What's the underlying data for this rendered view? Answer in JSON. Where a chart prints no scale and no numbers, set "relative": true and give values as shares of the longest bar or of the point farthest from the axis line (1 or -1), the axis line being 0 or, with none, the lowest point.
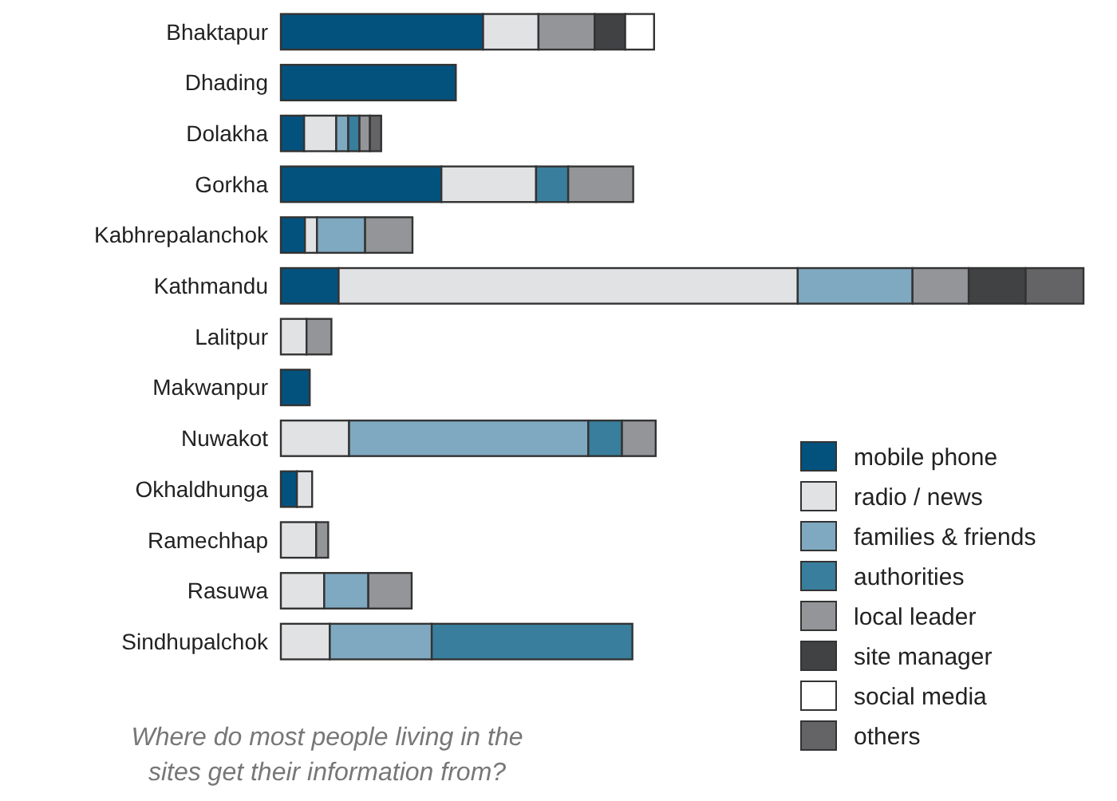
{
  "chart_data": {
    "type": "bar",
    "orientation": "horizontal",
    "stacked": true,
    "relative": true,
    "title": "Where do most people living in the sites get their information from?",
    "categories": [
      "Bhaktapur",
      "Dhading",
      "Dolakha",
      "Gorkha",
      "Kabhrepalanchok",
      "Kathmandu",
      "Lalitpur",
      "Makwanpur",
      "Nuwakot",
      "Okhaldhunga",
      "Ramechhap",
      "Rasuwa",
      "Sindhupalchok"
    ],
    "series": [
      {
        "name": "mobile phone",
        "color": "#03527e",
        "values": [
          0.252,
          0.218,
          0.029,
          0.2,
          0.03,
          0.072,
          null,
          0.036,
          null,
          0.02,
          null,
          null,
          null
        ]
      },
      {
        "name": "radio / news",
        "color": "#e1e2e4",
        "values": [
          0.069,
          null,
          0.04,
          0.118,
          0.015,
          0.572,
          0.032,
          null,
          0.085,
          0.019,
          0.044,
          0.054,
          0.061
        ]
      },
      {
        "name": "families & friends",
        "color": "#7fa9c0",
        "values": [
          null,
          null,
          0.015,
          null,
          0.06,
          0.143,
          null,
          null,
          0.298,
          null,
          null,
          0.055,
          0.127
        ]
      },
      {
        "name": "authorities",
        "color": "#397e9c",
        "values": [
          null,
          null,
          0.014,
          0.04,
          null,
          null,
          null,
          null,
          0.042,
          null,
          null,
          null,
          0.25
        ]
      },
      {
        "name": "local leader",
        "color": "#939598",
        "values": [
          0.07,
          null,
          0.013,
          0.081,
          0.059,
          0.07,
          0.031,
          null,
          0.042,
          null,
          0.015,
          0.054,
          null
        ]
      },
      {
        "name": "site manager",
        "color": "#414244",
        "values": [
          0.038,
          null,
          null,
          null,
          null,
          0.071,
          null,
          null,
          null,
          null,
          null,
          null,
          null
        ]
      },
      {
        "name": "social media",
        "color": "#ffffff",
        "values": [
          0.036,
          null,
          null,
          null,
          null,
          null,
          null,
          null,
          null,
          null,
          null,
          null,
          null
        ]
      },
      {
        "name": "others",
        "color": "#646466",
        "values": [
          null,
          null,
          0.014,
          null,
          null,
          0.072,
          null,
          null,
          null,
          null,
          null,
          null,
          null
        ]
      }
    ],
    "legend": "bottom right"
  }
}
